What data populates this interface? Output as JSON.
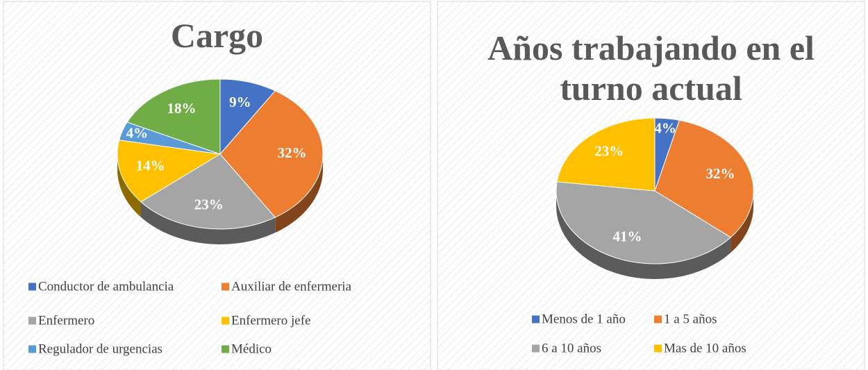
{
  "chart_data": [
    {
      "type": "pie",
      "title": "Cargo",
      "categories": [
        "Conductor de ambulancia",
        "Auxiliar de enfermeria",
        "Enfermero",
        "Enfermero jefe",
        "Regulador de urgencias",
        "Médico"
      ],
      "values": [
        9,
        32,
        23,
        14,
        4,
        18
      ],
      "value_labels": [
        "9%",
        "32%",
        "23%",
        "14%",
        "4%",
        "18%"
      ],
      "colors": [
        "#4472c4",
        "#ed7d31",
        "#a5a5a5",
        "#ffc000",
        "#5b9bd5",
        "#70ad47"
      ],
      "legend": "bottom"
    },
    {
      "type": "pie",
      "title": "Años trabajando en el turno actual",
      "categories": [
        "Menos de 1 año",
        "1 a 5 años",
        "6 a 10 años",
        "Mas de 10 años"
      ],
      "values": [
        4,
        32,
        41,
        23
      ],
      "value_labels": [
        "4%",
        "32%",
        "41%",
        "23%"
      ],
      "colors": [
        "#4472c4",
        "#ed7d31",
        "#a5a5a5",
        "#ffc000"
      ],
      "legend": "bottom"
    }
  ]
}
